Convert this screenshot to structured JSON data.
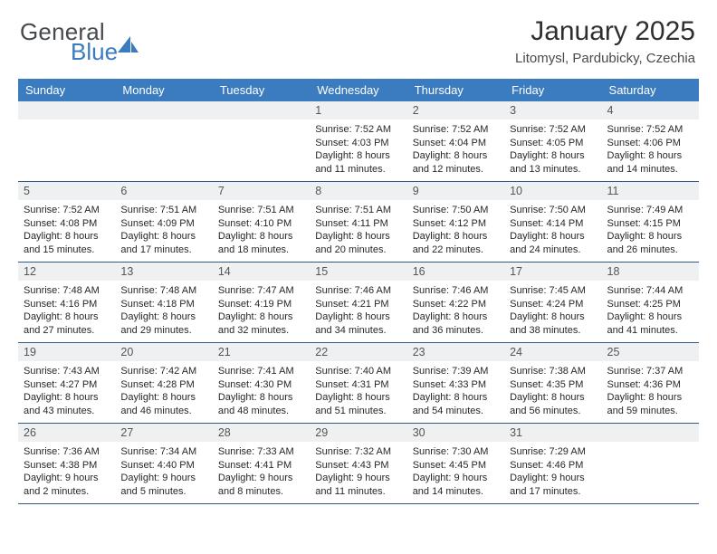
{
  "brand": {
    "general": "General",
    "blue": "Blue"
  },
  "header": {
    "title": "January 2025",
    "subtitle": "Litomysl, Pardubicky, Czechia"
  },
  "colors": {
    "header_bar": "#3b7bbf",
    "header_text": "#ffffff",
    "week_divider": "#2f5b86",
    "daynum_bg": "#eef0f1",
    "page_bg": "#ffffff",
    "body_text": "#272727",
    "title_text": "#2f2f2f"
  },
  "day_names": [
    "Sunday",
    "Monday",
    "Tuesday",
    "Wednesday",
    "Thursday",
    "Friday",
    "Saturday"
  ],
  "weeks": [
    [
      {
        "n": "",
        "sr": "",
        "ss": "",
        "dl": ""
      },
      {
        "n": "",
        "sr": "",
        "ss": "",
        "dl": ""
      },
      {
        "n": "",
        "sr": "",
        "ss": "",
        "dl": ""
      },
      {
        "n": "1",
        "sr": "Sunrise: 7:52 AM",
        "ss": "Sunset: 4:03 PM",
        "dl": "Daylight: 8 hours and 11 minutes."
      },
      {
        "n": "2",
        "sr": "Sunrise: 7:52 AM",
        "ss": "Sunset: 4:04 PM",
        "dl": "Daylight: 8 hours and 12 minutes."
      },
      {
        "n": "3",
        "sr": "Sunrise: 7:52 AM",
        "ss": "Sunset: 4:05 PM",
        "dl": "Daylight: 8 hours and 13 minutes."
      },
      {
        "n": "4",
        "sr": "Sunrise: 7:52 AM",
        "ss": "Sunset: 4:06 PM",
        "dl": "Daylight: 8 hours and 14 minutes."
      }
    ],
    [
      {
        "n": "5",
        "sr": "Sunrise: 7:52 AM",
        "ss": "Sunset: 4:08 PM",
        "dl": "Daylight: 8 hours and 15 minutes."
      },
      {
        "n": "6",
        "sr": "Sunrise: 7:51 AM",
        "ss": "Sunset: 4:09 PM",
        "dl": "Daylight: 8 hours and 17 minutes."
      },
      {
        "n": "7",
        "sr": "Sunrise: 7:51 AM",
        "ss": "Sunset: 4:10 PM",
        "dl": "Daylight: 8 hours and 18 minutes."
      },
      {
        "n": "8",
        "sr": "Sunrise: 7:51 AM",
        "ss": "Sunset: 4:11 PM",
        "dl": "Daylight: 8 hours and 20 minutes."
      },
      {
        "n": "9",
        "sr": "Sunrise: 7:50 AM",
        "ss": "Sunset: 4:12 PM",
        "dl": "Daylight: 8 hours and 22 minutes."
      },
      {
        "n": "10",
        "sr": "Sunrise: 7:50 AM",
        "ss": "Sunset: 4:14 PM",
        "dl": "Daylight: 8 hours and 24 minutes."
      },
      {
        "n": "11",
        "sr": "Sunrise: 7:49 AM",
        "ss": "Sunset: 4:15 PM",
        "dl": "Daylight: 8 hours and 26 minutes."
      }
    ],
    [
      {
        "n": "12",
        "sr": "Sunrise: 7:48 AM",
        "ss": "Sunset: 4:16 PM",
        "dl": "Daylight: 8 hours and 27 minutes."
      },
      {
        "n": "13",
        "sr": "Sunrise: 7:48 AM",
        "ss": "Sunset: 4:18 PM",
        "dl": "Daylight: 8 hours and 29 minutes."
      },
      {
        "n": "14",
        "sr": "Sunrise: 7:47 AM",
        "ss": "Sunset: 4:19 PM",
        "dl": "Daylight: 8 hours and 32 minutes."
      },
      {
        "n": "15",
        "sr": "Sunrise: 7:46 AM",
        "ss": "Sunset: 4:21 PM",
        "dl": "Daylight: 8 hours and 34 minutes."
      },
      {
        "n": "16",
        "sr": "Sunrise: 7:46 AM",
        "ss": "Sunset: 4:22 PM",
        "dl": "Daylight: 8 hours and 36 minutes."
      },
      {
        "n": "17",
        "sr": "Sunrise: 7:45 AM",
        "ss": "Sunset: 4:24 PM",
        "dl": "Daylight: 8 hours and 38 minutes."
      },
      {
        "n": "18",
        "sr": "Sunrise: 7:44 AM",
        "ss": "Sunset: 4:25 PM",
        "dl": "Daylight: 8 hours and 41 minutes."
      }
    ],
    [
      {
        "n": "19",
        "sr": "Sunrise: 7:43 AM",
        "ss": "Sunset: 4:27 PM",
        "dl": "Daylight: 8 hours and 43 minutes."
      },
      {
        "n": "20",
        "sr": "Sunrise: 7:42 AM",
        "ss": "Sunset: 4:28 PM",
        "dl": "Daylight: 8 hours and 46 minutes."
      },
      {
        "n": "21",
        "sr": "Sunrise: 7:41 AM",
        "ss": "Sunset: 4:30 PM",
        "dl": "Daylight: 8 hours and 48 minutes."
      },
      {
        "n": "22",
        "sr": "Sunrise: 7:40 AM",
        "ss": "Sunset: 4:31 PM",
        "dl": "Daylight: 8 hours and 51 minutes."
      },
      {
        "n": "23",
        "sr": "Sunrise: 7:39 AM",
        "ss": "Sunset: 4:33 PM",
        "dl": "Daylight: 8 hours and 54 minutes."
      },
      {
        "n": "24",
        "sr": "Sunrise: 7:38 AM",
        "ss": "Sunset: 4:35 PM",
        "dl": "Daylight: 8 hours and 56 minutes."
      },
      {
        "n": "25",
        "sr": "Sunrise: 7:37 AM",
        "ss": "Sunset: 4:36 PM",
        "dl": "Daylight: 8 hours and 59 minutes."
      }
    ],
    [
      {
        "n": "26",
        "sr": "Sunrise: 7:36 AM",
        "ss": "Sunset: 4:38 PM",
        "dl": "Daylight: 9 hours and 2 minutes."
      },
      {
        "n": "27",
        "sr": "Sunrise: 7:34 AM",
        "ss": "Sunset: 4:40 PM",
        "dl": "Daylight: 9 hours and 5 minutes."
      },
      {
        "n": "28",
        "sr": "Sunrise: 7:33 AM",
        "ss": "Sunset: 4:41 PM",
        "dl": "Daylight: 9 hours and 8 minutes."
      },
      {
        "n": "29",
        "sr": "Sunrise: 7:32 AM",
        "ss": "Sunset: 4:43 PM",
        "dl": "Daylight: 9 hours and 11 minutes."
      },
      {
        "n": "30",
        "sr": "Sunrise: 7:30 AM",
        "ss": "Sunset: 4:45 PM",
        "dl": "Daylight: 9 hours and 14 minutes."
      },
      {
        "n": "31",
        "sr": "Sunrise: 7:29 AM",
        "ss": "Sunset: 4:46 PM",
        "dl": "Daylight: 9 hours and 17 minutes."
      },
      {
        "n": "",
        "sr": "",
        "ss": "",
        "dl": ""
      }
    ]
  ]
}
